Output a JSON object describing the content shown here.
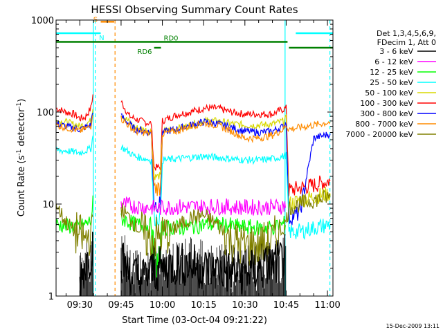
{
  "chart_data": {
    "type": "line",
    "title": "HESSI Observing Summary Count Rates",
    "xlabel": "Start Time (03-Oct-04 09:21:22)",
    "ylabel_main": "Count Rate (s",
    "ylabel_sup1": "-1",
    "ylabel_mid": " detector",
    "ylabel_sup2": "-1",
    "ylabel_end": ")",
    "y_scale": "log",
    "ylim": [
      1,
      1000
    ],
    "xlim_minutes": [
      21.37,
      122
    ],
    "x_ticks": [
      {
        "m": 30,
        "label": "09:30"
      },
      {
        "m": 45,
        "label": "09:45"
      },
      {
        "m": 60,
        "label": "10:00"
      },
      {
        "m": 75,
        "label": "10:15"
      },
      {
        "m": 90,
        "label": "10:30"
      },
      {
        "m": 105,
        "label": "10:45"
      },
      {
        "m": 120,
        "label": "11:00"
      }
    ],
    "y_ticks": [
      {
        "v": 1,
        "label": "1"
      },
      {
        "v": 10,
        "label": "10"
      },
      {
        "v": 100,
        "label": "100"
      },
      {
        "v": 1000,
        "label": "1000"
      }
    ],
    "legend": {
      "placement": "right",
      "header": [
        "Det 1,3,4,5,6,9,",
        "FDecim 1, Att 0"
      ],
      "entries": [
        {
          "label": "3 - 6 keV",
          "color": "#000000"
        },
        {
          "label": "6 - 12 keV",
          "color": "#ff00ff"
        },
        {
          "label": "12 - 25 keV",
          "color": "#00ff00"
        },
        {
          "label": "25 - 50 keV",
          "color": "#00ffff"
        },
        {
          "label": "50 - 100 keV",
          "color": "#d8d800"
        },
        {
          "label": "100 - 300 keV",
          "color": "#ff0000"
        },
        {
          "label": "300 - 800 keV",
          "color": "#0000ff"
        },
        {
          "label": "800 - 7000 keV",
          "color": "#ff8c00"
        },
        {
          "label": "7000 - 20000 keV",
          "color": "#808000"
        }
      ]
    },
    "flags": [
      {
        "label": "S",
        "color": "#ff8c00",
        "m_start": 37.6,
        "m_end": 42.5,
        "level": 960
      },
      {
        "label": "N",
        "color": "#00ffff",
        "m_start": 21.37,
        "m_end": 37.6,
        "level": 720,
        "m_start2": 108.5,
        "m_end2": 122,
        "show_label": true
      },
      {
        "label": "RD0",
        "color": "#008000",
        "m_start": 21.37,
        "m_end": 105.5,
        "level": 580
      },
      {
        "label": "RD6",
        "color": "#008000",
        "m_start": 57,
        "m_end": 59.5,
        "level": 500,
        "m_start2": 106,
        "m_end2": 122
      }
    ],
    "vlines": [
      {
        "m": 34.9,
        "color": "#00ffff",
        "style": "solid"
      },
      {
        "m": 35.6,
        "color": "#00ffff",
        "style": "dashed"
      },
      {
        "m": 42.8,
        "color": "#ff8c00",
        "style": "dashed"
      },
      {
        "m": 104.6,
        "color": "#00ffff",
        "style": "solid"
      },
      {
        "m": 120.9,
        "color": "#00ffff",
        "style": "dashed"
      }
    ],
    "attenuator_drops": [
      {
        "m_start": 57,
        "m_end": 59.3
      }
    ],
    "series": [
      {
        "name": "100 - 300 keV",
        "color": "#ff0000",
        "x": [
          21.4,
          25,
          28,
          30,
          32,
          34,
          35,
          36,
          37,
          44,
          45,
          48,
          52,
          56,
          57,
          59.3,
          60,
          62,
          66,
          70,
          75,
          80,
          85,
          90,
          95,
          100,
          103,
          105,
          106,
          110,
          115,
          118,
          121
        ],
        "y": [
          110,
          100,
          95,
          85,
          88,
          110,
          170,
          0,
          0,
          0,
          130,
          90,
          80,
          75,
          25,
          25,
          80,
          85,
          95,
          100,
          110,
          110,
          100,
          95,
          95,
          95,
          105,
          110,
          14,
          15,
          16,
          17,
          18
        ]
      },
      {
        "name": "50 - 100 keV",
        "color": "#d8d800",
        "x": [
          21.4,
          25,
          30,
          34,
          35,
          36,
          37,
          44,
          45,
          50,
          56,
          57,
          59.3,
          60,
          65,
          70,
          75,
          80,
          85,
          90,
          95,
          100,
          104,
          105,
          106,
          110,
          115,
          121
        ],
        "y": [
          80,
          78,
          70,
          80,
          130,
          0,
          0,
          0,
          95,
          68,
          62,
          20,
          20,
          62,
          66,
          72,
          80,
          80,
          75,
          72,
          72,
          74,
          80,
          85,
          10,
          11,
          12,
          13
        ]
      },
      {
        "name": "300 - 800 keV",
        "color": "#0000ff",
        "x": [
          21.4,
          25,
          30,
          34,
          35,
          36,
          37,
          44,
          45,
          50,
          56,
          57,
          59.3,
          60,
          65,
          70,
          75,
          80,
          85,
          90,
          95,
          100,
          104,
          105,
          106,
          110,
          115,
          121
        ],
        "y": [
          75,
          70,
          65,
          72,
          120,
          0,
          0,
          0,
          90,
          65,
          60,
          10,
          10,
          60,
          65,
          72,
          78,
          75,
          68,
          62,
          60,
          62,
          70,
          78,
          7,
          8,
          52,
          58
        ]
      },
      {
        "name": "800 - 7000 keV",
        "color": "#ff8c00",
        "x": [
          21.4,
          25,
          30,
          34,
          35,
          36,
          37,
          44,
          45,
          50,
          56,
          57,
          59.3,
          60,
          65,
          70,
          75,
          80,
          85,
          90,
          95,
          100,
          104,
          105,
          106,
          110,
          115,
          121
        ],
        "y": [
          72,
          68,
          62,
          70,
          115,
          0,
          0,
          0,
          85,
          62,
          58,
          15,
          15,
          58,
          62,
          70,
          76,
          72,
          62,
          52,
          52,
          56,
          65,
          72,
          65,
          68,
          72,
          78
        ]
      },
      {
        "name": "25 - 50 keV",
        "color": "#00ffff",
        "x": [
          21.4,
          25,
          30,
          34,
          35,
          36,
          37,
          44,
          45,
          50,
          56,
          57,
          59.3,
          60,
          65,
          70,
          75,
          80,
          85,
          90,
          95,
          100,
          104,
          105,
          106,
          110,
          115,
          121
        ],
        "y": [
          38,
          38,
          36,
          40,
          60,
          0,
          0,
          0,
          42,
          33,
          30,
          7,
          7,
          30,
          31,
          32,
          33,
          32,
          31,
          30,
          30,
          31,
          33,
          34,
          5,
          5,
          5.5,
          6
        ]
      },
      {
        "name": "6 - 12 keV",
        "color": "#ff00ff",
        "x": [
          21.4,
          34,
          35,
          36,
          37,
          44,
          45,
          50,
          56,
          57,
          59.3,
          60,
          65,
          70,
          75,
          80,
          85,
          90,
          95,
          100,
          104,
          105,
          106,
          121
        ],
        "y": [
          0,
          0,
          0,
          0,
          0,
          0,
          10,
          9.5,
          9.2,
          9,
          9,
          9.2,
          9.3,
          9.3,
          9.4,
          9.4,
          9.3,
          9.2,
          9.2,
          9.3,
          9.5,
          10,
          0,
          0
        ]
      },
      {
        "name": "12 - 25 keV",
        "color": "#00ff00",
        "x": [
          21.4,
          25,
          30,
          34,
          35,
          36,
          37,
          44,
          45,
          50,
          56,
          57,
          59.3,
          60,
          65,
          70,
          75,
          80,
          85,
          90,
          95,
          100,
          104,
          105,
          106,
          121
        ],
        "y": [
          6,
          5.8,
          5.6,
          6.5,
          12,
          0,
          0,
          0,
          7,
          6,
          5.8,
          2.4,
          2.4,
          5.5,
          5.5,
          5.6,
          6,
          6,
          5.8,
          5.6,
          5.5,
          5.6,
          6,
          6.5,
          0,
          0
        ]
      },
      {
        "name": "7000 - 20000 keV",
        "color": "#808000",
        "x": [
          21.4,
          24,
          28,
          32,
          34,
          35,
          36,
          37,
          44,
          45,
          50,
          55,
          60,
          65,
          70,
          75,
          80,
          85,
          90,
          95,
          100,
          104,
          105,
          106,
          110,
          115,
          121
        ],
        "y": [
          10,
          7,
          5,
          4,
          5,
          9,
          0,
          0,
          0,
          9,
          6,
          4,
          4.5,
          5.5,
          7,
          7.5,
          6,
          4,
          3.5,
          3.5,
          4,
          5.5,
          6.5,
          9,
          10,
          11,
          12
        ]
      },
      {
        "name": "3 - 6 keV",
        "color": "#000000",
        "x": [
          21.4,
          29,
          30,
          32,
          34,
          35,
          36,
          37,
          44,
          45,
          48,
          52,
          56,
          60,
          65,
          70,
          75,
          80,
          85,
          90,
          95,
          100,
          104,
          105,
          106,
          121
        ],
        "y": [
          0,
          0,
          1.5,
          2.2,
          2.8,
          4,
          0,
          0,
          0,
          2.5,
          1.8,
          1.5,
          1.8,
          2.0,
          2.2,
          2.2,
          2.0,
          1.9,
          1.8,
          1.8,
          1.9,
          2.2,
          2.5,
          2.8,
          0,
          0
        ]
      }
    ]
  },
  "footer": {
    "date_stamp": "15-Dec-2009 13:11"
  }
}
